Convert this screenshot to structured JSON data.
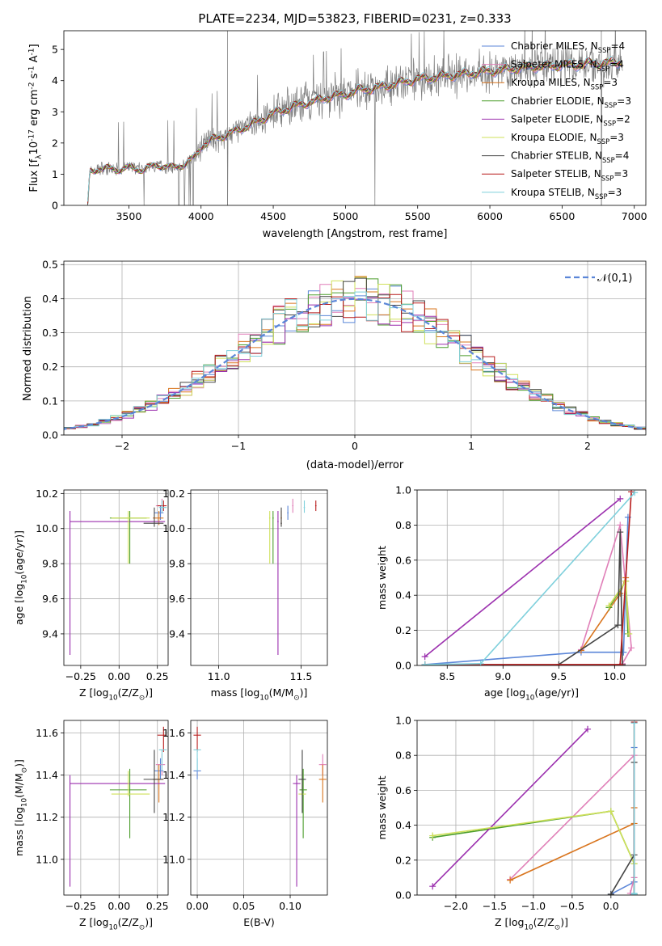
{
  "figure_title": "PLATE=2234, MJD=53823, FIBERID=0231, z=0.333",
  "colors": {
    "Chabrier MILES": "#5b86d8",
    "Salpeter MILES": "#e07fb8",
    "Kroupa MILES": "#d9751e",
    "Chabrier ELODIE": "#4c9e2c",
    "Salpeter ELODIE": "#9b2fae",
    "Kroupa ELODIE": "#cfe05a",
    "Chabrier STELIB": "#444444",
    "Salpeter STELIB": "#b81c1c",
    "Kroupa STELIB": "#7fd0dc",
    "data": "#7f7f7f",
    "normal": "#5b86d8"
  },
  "chart_data": [
    {
      "id": "spectrum",
      "type": "line",
      "xlabel": "wavelength [Angstrom, rest frame]",
      "ylabel": "Flux [f$_\\lambda$10$^{-17}$ erg cm$^{-2}$ s$^{-1}$ A$^{-1}$]",
      "xlim": [
        3050,
        7080
      ],
      "ylim": [
        0,
        5.6
      ],
      "xticks": [
        3500,
        4000,
        4500,
        5000,
        5500,
        6000,
        6500,
        7000
      ],
      "yticks": [
        0,
        1,
        2,
        3,
        4,
        5
      ],
      "grid": false,
      "legend_position": "top-right",
      "legend": [
        {
          "base": "Chabrier MILES",
          "n": "4"
        },
        {
          "base": "Salpeter MILES",
          "n": "4"
        },
        {
          "base": "Kroupa MILES",
          "n": "3"
        },
        {
          "base": "Chabrier ELODIE",
          "n": "3"
        },
        {
          "base": "Salpeter ELODIE",
          "n": "2"
        },
        {
          "base": "Kroupa ELODIE",
          "n": "3"
        },
        {
          "base": "Chabrier STELIB",
          "n": "4"
        },
        {
          "base": "Salpeter STELIB",
          "n": "3"
        },
        {
          "base": "Kroupa STELIB",
          "n": "3"
        }
      ],
      "legend_sub": "SSP",
      "continuum": {
        "x": [
          3215,
          3230,
          3300,
          3400,
          3500,
          3600,
          3700,
          3800,
          3900,
          3960,
          4000,
          4100,
          4200,
          4300,
          4400,
          4500,
          4600,
          4700,
          4800,
          4900,
          5000,
          5100,
          5200,
          5300,
          5400,
          5500,
          5600,
          5700,
          5800,
          5900,
          6000,
          6100,
          6200,
          6300,
          6400,
          6500,
          6600,
          6700,
          6800,
          6900
        ],
        "y": [
          0,
          1.05,
          1.2,
          1.15,
          1.2,
          1.15,
          1.3,
          1.2,
          1.35,
          1.55,
          1.9,
          2.15,
          2.3,
          2.5,
          2.7,
          2.95,
          3.1,
          3.25,
          3.35,
          3.5,
          3.55,
          3.7,
          3.75,
          3.85,
          3.95,
          4.05,
          4.1,
          4.15,
          4.2,
          4.25,
          4.3,
          4.35,
          4.4,
          4.45,
          4.45,
          4.5,
          4.5,
          4.55,
          4.55,
          4.6
        ]
      }
    },
    {
      "id": "residuals",
      "type": "line",
      "xlabel": "(data-model)/error",
      "ylabel": "Normed distribution",
      "xlim": [
        -2.5,
        2.5
      ],
      "ylim": [
        0,
        0.51
      ],
      "xticks": [
        -2,
        -1,
        0,
        1,
        2
      ],
      "yticks": [
        0.0,
        0.1,
        0.2,
        0.3,
        0.4,
        0.5
      ],
      "grid": true,
      "legend_position": "top-right",
      "normal_label": "$\\mathcal{N}(0,1)$"
    },
    {
      "id": "age_vs_Z",
      "type": "scatter",
      "xlabel": "Z [log$_{10}$($Z/Z_\\odot$)]",
      "ylabel": "age  [log$_{10}$($age/yr$)]",
      "xlim": [
        -0.36,
        0.32
      ],
      "ylim": [
        9.22,
        10.22
      ],
      "xticks": [
        -0.25,
        0.0,
        0.25
      ],
      "yticks": [
        9.4,
        9.6,
        9.8,
        10.0,
        10.2
      ],
      "grid": true
    },
    {
      "id": "age_vs_mass",
      "type": "scatter",
      "xlabel": "mass [log$_{10}$($M/M_\\odot$)]",
      "ylabel": "",
      "xlim": [
        10.83,
        11.66
      ],
      "ylim": [
        9.22,
        10.22
      ],
      "xticks": [
        11.0,
        11.5
      ],
      "yticks": [
        9.4,
        9.6,
        9.8,
        10.0,
        10.2
      ],
      "grid": true
    },
    {
      "id": "massweight_vs_age",
      "type": "line",
      "xlabel": "age  [log$_{10}$($age/yr$)]",
      "ylabel": "mass weight",
      "xlim": [
        8.23,
        10.28
      ],
      "ylim": [
        0,
        1.0
      ],
      "xticks": [
        8.5,
        9.0,
        9.5,
        10.0
      ],
      "yticks": [
        0.0,
        0.2,
        0.4,
        0.6,
        0.8,
        1.0
      ],
      "grid": true
    },
    {
      "id": "mass_vs_Z",
      "type": "scatter",
      "xlabel": "Z [log$_{10}$($Z/Z_\\odot$)]",
      "ylabel": "mass [log$_{10}$($M/M_\\odot$)]",
      "xlim": [
        -0.36,
        0.32
      ],
      "ylim": [
        10.83,
        11.66
      ],
      "xticks": [
        -0.25,
        0.0,
        0.25
      ],
      "yticks": [
        11.0,
        11.2,
        11.4,
        11.6
      ],
      "grid": true
    },
    {
      "id": "mass_vs_ebv",
      "type": "scatter",
      "xlabel": "E(B-V)",
      "ylabel": "",
      "xlim": [
        -0.007,
        0.14
      ],
      "ylim": [
        10.83,
        11.66
      ],
      "xticks": [
        0.0,
        0.05,
        0.1
      ],
      "yticks": [
        11.0,
        11.2,
        11.4,
        11.6
      ],
      "grid": true
    },
    {
      "id": "massweight_vs_Z",
      "type": "line",
      "xlabel": "Z [log$_{10}$($Z/Z_\\odot$)]",
      "ylabel": "mass weight",
      "xlim": [
        -2.5,
        0.45
      ],
      "ylim": [
        0,
        1.0
      ],
      "xticks": [
        -2.0,
        -1.5,
        -1.0,
        -0.5,
        0.0
      ],
      "yticks": [
        0.0,
        0.2,
        0.4,
        0.6,
        0.8,
        1.0
      ],
      "grid": true
    }
  ],
  "model_fits": [
    {
      "name": "Chabrier MILES",
      "Z": 0.27,
      "Zerr": [
        0.23,
        0.29
      ],
      "age": 10.09,
      "ageerr": [
        10.05,
        10.13
      ],
      "mass": 11.42,
      "masserr": [
        11.38,
        11.48
      ],
      "ebv": 0.0,
      "ssp_age": [
        8.3,
        9.7,
        10.08,
        10.12
      ],
      "ssp_Z": [
        0.0,
        0.3,
        0.3,
        0.3
      ],
      "ssp_w": [
        0.005,
        0.075,
        0.075,
        0.845
      ]
    },
    {
      "name": "Salpeter MILES",
      "Z": 0.28,
      "Zerr": [
        0.24,
        0.3
      ],
      "age": 10.13,
      "ageerr": [
        10.09,
        10.17
      ],
      "mass": 11.45,
      "masserr": [
        11.4,
        11.5
      ],
      "ebv": 0.135,
      "ssp_age": [
        9.7,
        10.05,
        10.15,
        10.07
      ],
      "ssp_Z": [
        -1.3,
        0.3,
        0.3,
        0.25
      ],
      "ssp_w": [
        0.09,
        0.8,
        0.1,
        0.01
      ]
    },
    {
      "name": "Kroupa MILES",
      "Z": 0.26,
      "Zerr": [
        0.22,
        0.29
      ],
      "age": 10.06,
      "ageerr": [
        10.02,
        10.1
      ],
      "mass": 11.38,
      "masserr": [
        11.27,
        11.45
      ],
      "ebv": 0.135,
      "ssp_age": [
        9.7,
        10.05,
        10.1
      ],
      "ssp_Z": [
        -1.3,
        0.3,
        0.3
      ],
      "ssp_w": [
        0.085,
        0.41,
        0.5
      ]
    },
    {
      "name": "Chabrier ELODIE",
      "Z": 0.07,
      "Zerr": [
        -0.06,
        0.18
      ],
      "age": 10.06,
      "ageerr": [
        9.8,
        10.1
      ],
      "mass": 11.33,
      "masserr": [
        11.1,
        11.43
      ],
      "ebv": 0.114,
      "ssp_age": [
        9.95,
        10.1,
        10.12
      ],
      "ssp_Z": [
        -2.3,
        0.0,
        0.3
      ],
      "ssp_w": [
        0.33,
        0.48,
        0.18
      ]
    },
    {
      "name": "Salpeter ELODIE",
      "Z": -0.32,
      "Zerr": [
        -0.32,
        0.3
      ],
      "age": 10.04,
      "ageerr": [
        9.28,
        10.1
      ],
      "mass": 11.36,
      "masserr": [
        10.87,
        11.4
      ],
      "ebv": 0.107,
      "ssp_age": [
        8.3,
        10.05
      ],
      "ssp_Z": [
        -2.3,
        -0.3
      ],
      "ssp_w": [
        0.05,
        0.95
      ]
    },
    {
      "name": "Kroupa ELODIE",
      "Z": 0.06,
      "Zerr": [
        -0.05,
        0.2
      ],
      "age": 10.06,
      "ageerr": [
        9.8,
        10.1
      ],
      "mass": 11.31,
      "masserr": [
        11.3,
        11.42
      ],
      "ebv": 0.113,
      "ssp_age": [
        9.95,
        10.1,
        10.13
      ],
      "ssp_Z": [
        -2.3,
        0.0,
        0.3
      ],
      "ssp_w": [
        0.34,
        0.48,
        0.18
      ]
    },
    {
      "name": "Chabrier STELIB",
      "Z": 0.23,
      "Zerr": [
        0.16,
        0.29
      ],
      "age": 10.03,
      "ageerr": [
        10.01,
        10.12
      ],
      "mass": 11.38,
      "masserr": [
        11.22,
        11.52
      ],
      "ebv": 0.113,
      "ssp_age": [
        9.5,
        10.03,
        10.05,
        10.07
      ],
      "ssp_Z": [
        0.0,
        0.3,
        0.3,
        0.3
      ],
      "ssp_w": [
        0.005,
        0.23,
        0.76,
        0.005
      ]
    },
    {
      "name": "Salpeter STELIB",
      "Z": 0.29,
      "Zerr": [
        0.25,
        0.31
      ],
      "age": 10.13,
      "ageerr": [
        10.1,
        10.16
      ],
      "mass": 11.59,
      "masserr": [
        11.51,
        11.63
      ],
      "ebv": 0.0,
      "ssp_age": [
        8.3,
        10.05,
        10.15
      ],
      "ssp_Z": [
        0.3,
        0.3,
        0.3
      ],
      "ssp_w": [
        0.005,
        0.005,
        0.99
      ]
    },
    {
      "name": "Kroupa STELIB",
      "Z": 0.28,
      "Zerr": [
        0.26,
        0.31
      ],
      "age": 10.12,
      "ageerr": [
        10.09,
        10.16
      ],
      "mass": 11.52,
      "masserr": [
        11.42,
        11.52
      ],
      "ebv": 0.0,
      "ssp_age": [
        8.3,
        8.8,
        10.18
      ],
      "ssp_Z": [
        0.3,
        0.3,
        0.3
      ],
      "ssp_w": [
        0.005,
        0.01,
        0.985
      ]
    }
  ]
}
